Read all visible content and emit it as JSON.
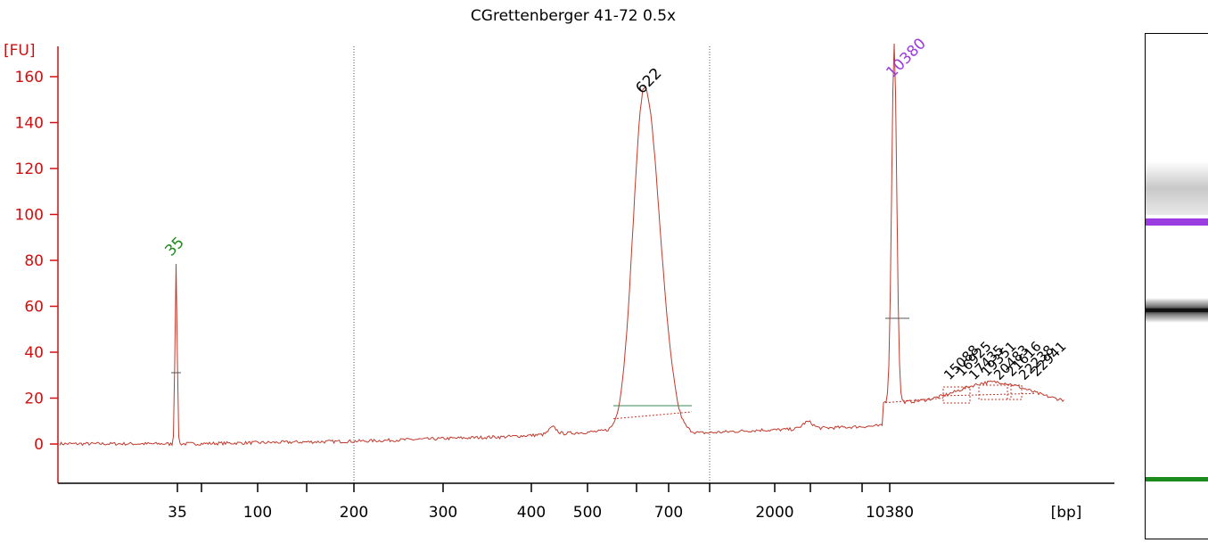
{
  "chart_data": {
    "type": "line",
    "title": "CGrettenberger 41-72 0.5x",
    "ylabel": "[FU]",
    "xlabel": "[bp]",
    "ylim": [
      -15,
      170
    ],
    "y_ticks": [
      0,
      20,
      40,
      60,
      80,
      100,
      120,
      140,
      160
    ],
    "x_ticks": [
      "35",
      "100",
      "200",
      "300",
      "400",
      "500",
      "700",
      "2000",
      "10380"
    ],
    "series": [
      {
        "values": [
          [
            35,
            0
          ],
          [
            35,
            79
          ],
          [
            200,
            1
          ],
          [
            300,
            3
          ],
          [
            400,
            5
          ],
          [
            500,
            7
          ],
          [
            622,
            150
          ],
          [
            700,
            45
          ],
          [
            800,
            8
          ],
          [
            2000,
            9
          ],
          [
            10380,
            156
          ],
          [
            12000,
            20
          ],
          [
            25000,
            27
          ]
        ]
      }
    ],
    "peaks": [
      {
        "label": "35",
        "color": "#1a8a1a"
      },
      {
        "label": "622",
        "color": "#000000"
      },
      {
        "label": "10380",
        "color": "#9a3ce0"
      }
    ],
    "small_peak_labels": [
      "15088",
      "16925",
      "17435",
      "19351",
      "20483",
      "21616",
      "22238",
      "22941"
    ],
    "gel_bands": [
      {
        "size": "10380",
        "color": "#9a3ce0"
      },
      {
        "size": "622",
        "color": "#111111"
      },
      {
        "size": "35",
        "color": "#1a8a1a"
      }
    ]
  }
}
